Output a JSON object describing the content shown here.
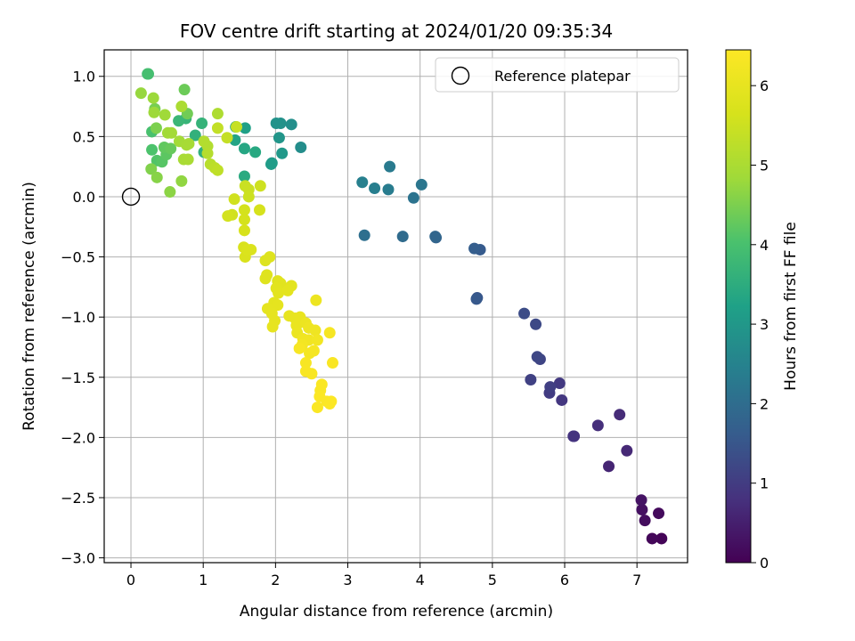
{
  "chart_data": {
    "type": "scatter",
    "title": "FOV centre drift starting at 2024/01/20 09:35:34",
    "xlabel": "Angular distance from reference (arcmin)",
    "ylabel": "Rotation from reference (arcmin)",
    "xlim": [
      -0.37,
      7.7
    ],
    "ylim": [
      -3.04,
      1.22
    ],
    "x_ticks": [
      0,
      1,
      2,
      3,
      4,
      5,
      6,
      7
    ],
    "x_tick_labels": [
      "0",
      "1",
      "2",
      "3",
      "4",
      "5",
      "6",
      "7"
    ],
    "y_ticks": [
      1.0,
      0.5,
      0.0,
      -0.5,
      -1.0,
      -1.5,
      -2.0,
      -2.5,
      -3.0
    ],
    "y_tick_labels": [
      "1.0",
      "0.5",
      "0.0",
      "−0.5",
      "−1.0",
      "−1.5",
      "−2.0",
      "−2.5",
      "−3.0"
    ],
    "grid": true,
    "legend": {
      "placement": "top-right",
      "entries": [
        "Reference platepar"
      ]
    },
    "colorbar": {
      "label": "Hours from first FF file",
      "colormap": "viridis",
      "range": [
        0,
        6.45
      ],
      "ticks": [
        0,
        1,
        2,
        3,
        4,
        5,
        6
      ],
      "tick_labels": [
        "0",
        "1",
        "2",
        "3",
        "4",
        "5",
        "6"
      ]
    },
    "reference_point": {
      "x": 0,
      "y": 0
    },
    "series": [
      {
        "points": [
          {
            "x": 7.34,
            "y": -2.84,
            "c": 0.05
          },
          {
            "x": 7.21,
            "y": -2.84,
            "c": 0.1
          },
          {
            "x": 7.3,
            "y": -2.63,
            "c": 0.15
          },
          {
            "x": 7.11,
            "y": -2.69,
            "c": 0.2
          },
          {
            "x": 7.07,
            "y": -2.6,
            "c": 0.25
          },
          {
            "x": 7.06,
            "y": -2.52,
            "c": 0.3
          },
          {
            "x": 6.61,
            "y": -2.24,
            "c": 0.6
          },
          {
            "x": 6.86,
            "y": -2.11,
            "c": 0.65
          },
          {
            "x": 6.76,
            "y": -1.81,
            "c": 0.7
          },
          {
            "x": 6.46,
            "y": -1.9,
            "c": 0.75
          },
          {
            "x": 6.13,
            "y": -1.99,
            "c": 0.8
          },
          {
            "x": 6.12,
            "y": -1.99,
            "c": 0.85
          },
          {
            "x": 5.96,
            "y": -1.69,
            "c": 0.9
          },
          {
            "x": 5.93,
            "y": -1.55,
            "c": 0.95
          },
          {
            "x": 5.79,
            "y": -1.63,
            "c": 1.0
          },
          {
            "x": 5.8,
            "y": -1.58,
            "c": 1.05
          },
          {
            "x": 5.53,
            "y": -1.52,
            "c": 1.1
          },
          {
            "x": 5.66,
            "y": -1.35,
            "c": 1.15
          },
          {
            "x": 5.62,
            "y": -1.33,
            "c": 1.2
          },
          {
            "x": 5.6,
            "y": -1.06,
            "c": 1.25
          },
          {
            "x": 5.44,
            "y": -0.97,
            "c": 1.3
          },
          {
            "x": 4.79,
            "y": -0.84,
            "c": 1.5
          },
          {
            "x": 4.78,
            "y": -0.85,
            "c": 1.55
          },
          {
            "x": 4.83,
            "y": -0.44,
            "c": 1.6
          },
          {
            "x": 4.75,
            "y": -0.43,
            "c": 1.65
          },
          {
            "x": 4.22,
            "y": -0.34,
            "c": 1.8
          },
          {
            "x": 4.21,
            "y": -0.33,
            "c": 1.85
          },
          {
            "x": 3.76,
            "y": -0.33,
            "c": 1.95
          },
          {
            "x": 3.23,
            "y": -0.32,
            "c": 2.05
          },
          {
            "x": 3.91,
            "y": -0.01,
            "c": 2.15
          },
          {
            "x": 4.02,
            "y": 0.1,
            "c": 2.2
          },
          {
            "x": 3.58,
            "y": 0.25,
            "c": 2.3
          },
          {
            "x": 3.56,
            "y": 0.06,
            "c": 2.35
          },
          {
            "x": 3.37,
            "y": 0.07,
            "c": 2.4
          },
          {
            "x": 3.2,
            "y": 0.12,
            "c": 2.45
          },
          {
            "x": 2.35,
            "y": 0.41,
            "c": 2.75
          },
          {
            "x": 2.22,
            "y": 0.6,
            "c": 2.8
          },
          {
            "x": 2.07,
            "y": 0.61,
            "c": 2.85
          },
          {
            "x": 2.01,
            "y": 0.61,
            "c": 2.9
          },
          {
            "x": 2.05,
            "y": 0.49,
            "c": 2.95
          },
          {
            "x": 2.09,
            "y": 0.36,
            "c": 3.0
          },
          {
            "x": 1.95,
            "y": 0.28,
            "c": 3.05
          },
          {
            "x": 1.94,
            "y": 0.27,
            "c": 3.1
          },
          {
            "x": 1.58,
            "y": 0.57,
            "c": 3.2
          },
          {
            "x": 1.45,
            "y": 0.58,
            "c": 3.25
          },
          {
            "x": 1.44,
            "y": 0.47,
            "c": 3.3
          },
          {
            "x": 1.57,
            "y": 0.4,
            "c": 3.35
          },
          {
            "x": 1.72,
            "y": 0.37,
            "c": 3.4
          },
          {
            "x": 1.57,
            "y": 0.17,
            "c": 3.45
          },
          {
            "x": 1.01,
            "y": 0.37,
            "c": 3.55
          },
          {
            "x": 0.89,
            "y": 0.51,
            "c": 3.6
          },
          {
            "x": 0.98,
            "y": 0.61,
            "c": 3.65
          },
          {
            "x": 0.76,
            "y": 0.65,
            "c": 3.7
          },
          {
            "x": 0.66,
            "y": 0.63,
            "c": 3.75
          },
          {
            "x": 0.23,
            "y": 1.02,
            "c": 3.9
          },
          {
            "x": 0.24,
            "y": 1.02,
            "c": 3.95
          },
          {
            "x": 0.29,
            "y": 0.54,
            "c": 4.0
          },
          {
            "x": 0.29,
            "y": 0.39,
            "c": 4.05
          },
          {
            "x": 0.36,
            "y": 0.3,
            "c": 4.1
          },
          {
            "x": 0.43,
            "y": 0.29,
            "c": 4.15
          },
          {
            "x": 0.49,
            "y": 0.35,
            "c": 4.2
          },
          {
            "x": 0.46,
            "y": 0.41,
            "c": 4.25
          },
          {
            "x": 0.55,
            "y": 0.4,
            "c": 4.3
          },
          {
            "x": 0.74,
            "y": 0.89,
            "c": 4.35
          },
          {
            "x": 0.78,
            "y": 0.69,
            "c": 4.4
          },
          {
            "x": 0.33,
            "y": 0.73,
            "c": 4.45
          },
          {
            "x": 0.35,
            "y": 0.57,
            "c": 4.5
          },
          {
            "x": 0.28,
            "y": 0.23,
            "c": 4.55
          },
          {
            "x": 0.36,
            "y": 0.16,
            "c": 4.6
          },
          {
            "x": 0.54,
            "y": 0.04,
            "c": 4.65
          },
          {
            "x": 0.7,
            "y": 0.13,
            "c": 4.7
          },
          {
            "x": 0.14,
            "y": 0.86,
            "c": 4.75
          },
          {
            "x": 0.31,
            "y": 0.82,
            "c": 4.8
          },
          {
            "x": 0.32,
            "y": 0.7,
            "c": 4.82
          },
          {
            "x": 0.47,
            "y": 0.68,
            "c": 4.84
          },
          {
            "x": 0.51,
            "y": 0.53,
            "c": 4.86
          },
          {
            "x": 0.56,
            "y": 0.53,
            "c": 4.88
          },
          {
            "x": 0.67,
            "y": 0.46,
            "c": 4.9
          },
          {
            "x": 0.77,
            "y": 0.43,
            "c": 4.92
          },
          {
            "x": 0.8,
            "y": 0.44,
            "c": 4.94
          },
          {
            "x": 0.73,
            "y": 0.31,
            "c": 4.96
          },
          {
            "x": 0.79,
            "y": 0.31,
            "c": 4.98
          },
          {
            "x": 0.7,
            "y": 0.75,
            "c": 5.0
          },
          {
            "x": 1.2,
            "y": 0.69,
            "c": 5.05
          },
          {
            "x": 1.06,
            "y": 0.42,
            "c": 5.1
          },
          {
            "x": 1.01,
            "y": 0.46,
            "c": 5.12
          },
          {
            "x": 1.06,
            "y": 0.36,
            "c": 5.15
          },
          {
            "x": 1.1,
            "y": 0.27,
            "c": 5.2
          },
          {
            "x": 1.16,
            "y": 0.24,
            "c": 5.25
          },
          {
            "x": 1.2,
            "y": 0.22,
            "c": 5.3
          },
          {
            "x": 1.2,
            "y": 0.57,
            "c": 5.35
          },
          {
            "x": 1.33,
            "y": 0.49,
            "c": 5.38
          },
          {
            "x": 1.46,
            "y": 0.58,
            "c": 5.4
          },
          {
            "x": 1.58,
            "y": 0.09,
            "c": 5.45
          },
          {
            "x": 1.63,
            "y": 0.06,
            "c": 5.47
          },
          {
            "x": 1.63,
            "y": 0.0,
            "c": 5.5
          },
          {
            "x": 1.79,
            "y": 0.09,
            "c": 5.52
          },
          {
            "x": 1.43,
            "y": -0.02,
            "c": 5.55
          },
          {
            "x": 1.4,
            "y": -0.15,
            "c": 5.57
          },
          {
            "x": 1.34,
            "y": -0.16,
            "c": 5.6
          },
          {
            "x": 1.57,
            "y": -0.11,
            "c": 5.62
          },
          {
            "x": 1.57,
            "y": -0.19,
            "c": 5.63
          },
          {
            "x": 1.78,
            "y": -0.11,
            "c": 5.65
          },
          {
            "x": 1.57,
            "y": -0.28,
            "c": 5.67
          },
          {
            "x": 1.56,
            "y": -0.42,
            "c": 5.7
          },
          {
            "x": 1.58,
            "y": -0.5,
            "c": 5.72
          },
          {
            "x": 1.66,
            "y": -0.44,
            "c": 5.74
          },
          {
            "x": 1.61,
            "y": -0.44,
            "c": 5.75
          },
          {
            "x": 1.86,
            "y": -0.53,
            "c": 5.78
          },
          {
            "x": 1.92,
            "y": -0.5,
            "c": 5.8
          },
          {
            "x": 1.86,
            "y": -0.68,
            "c": 5.82
          },
          {
            "x": 1.88,
            "y": -0.65,
            "c": 5.84
          },
          {
            "x": 2.03,
            "y": -0.7,
            "c": 5.86
          },
          {
            "x": 2.07,
            "y": -0.72,
            "c": 5.88
          },
          {
            "x": 2.01,
            "y": -0.76,
            "c": 5.9
          },
          {
            "x": 2.04,
            "y": -0.8,
            "c": 5.91
          },
          {
            "x": 2.22,
            "y": -0.74,
            "c": 5.92
          },
          {
            "x": 2.17,
            "y": -0.78,
            "c": 5.93
          },
          {
            "x": 1.98,
            "y": -0.88,
            "c": 5.94
          },
          {
            "x": 2.03,
            "y": -0.9,
            "c": 5.95
          },
          {
            "x": 1.89,
            "y": -0.93,
            "c": 5.96
          },
          {
            "x": 1.95,
            "y": -0.97,
            "c": 5.97
          },
          {
            "x": 1.99,
            "y": -1.03,
            "c": 5.98
          },
          {
            "x": 1.96,
            "y": -1.08,
            "c": 5.99
          },
          {
            "x": 2.19,
            "y": -0.99,
            "c": 6.0
          },
          {
            "x": 2.27,
            "y": -1.01,
            "c": 6.02
          },
          {
            "x": 2.34,
            "y": -1.0,
            "c": 6.04
          },
          {
            "x": 2.29,
            "y": -1.07,
            "c": 6.06
          },
          {
            "x": 2.3,
            "y": -1.13,
            "c": 6.08
          },
          {
            "x": 2.42,
            "y": -1.05,
            "c": 6.1
          },
          {
            "x": 2.56,
            "y": -0.86,
            "c": 6.12
          },
          {
            "x": 2.46,
            "y": -1.09,
            "c": 6.14
          },
          {
            "x": 2.55,
            "y": -1.11,
            "c": 6.16
          },
          {
            "x": 2.38,
            "y": -1.18,
            "c": 6.18
          },
          {
            "x": 2.46,
            "y": -1.19,
            "c": 6.2
          },
          {
            "x": 2.58,
            "y": -1.19,
            "c": 6.22
          },
          {
            "x": 2.37,
            "y": -1.23,
            "c": 6.24
          },
          {
            "x": 2.47,
            "y": -1.3,
            "c": 6.26
          },
          {
            "x": 2.53,
            "y": -1.28,
            "c": 6.28
          },
          {
            "x": 2.75,
            "y": -1.13,
            "c": 6.3
          },
          {
            "x": 2.33,
            "y": -1.26,
            "c": 6.32
          },
          {
            "x": 2.42,
            "y": -1.38,
            "c": 6.33
          },
          {
            "x": 2.42,
            "y": -1.45,
            "c": 6.34
          },
          {
            "x": 2.5,
            "y": -1.47,
            "c": 6.35
          },
          {
            "x": 2.79,
            "y": -1.38,
            "c": 6.36
          },
          {
            "x": 2.62,
            "y": -1.61,
            "c": 6.37
          },
          {
            "x": 2.64,
            "y": -1.56,
            "c": 6.38
          },
          {
            "x": 2.58,
            "y": -1.75,
            "c": 6.39
          },
          {
            "x": 2.61,
            "y": -1.66,
            "c": 6.4
          },
          {
            "x": 2.71,
            "y": -1.7,
            "c": 6.41
          },
          {
            "x": 2.77,
            "y": -1.7,
            "c": 6.42
          },
          {
            "x": 2.75,
            "y": -1.72,
            "c": 6.43
          }
        ]
      }
    ]
  }
}
